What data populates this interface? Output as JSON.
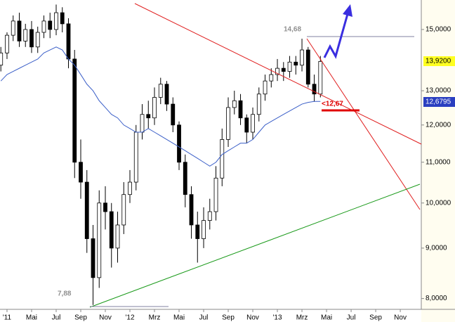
{
  "chart_data": {
    "type": "candlestick",
    "x": [
      1.5,
      2,
      2.5,
      3,
      3.5,
      4,
      4.5,
      5,
      5.5,
      6,
      6.5,
      7,
      7.5,
      8,
      8.5,
      9,
      9.5,
      10,
      10.5,
      11,
      11.5,
      12,
      12.5,
      13,
      13.5,
      14,
      14.5,
      15,
      15.5,
      16,
      16.5,
      17,
      17.5,
      18,
      18.5,
      19,
      19.5,
      20,
      20.5,
      21,
      21.5,
      22,
      22.5,
      23,
      23.5,
      24,
      24.5,
      25,
      25.5,
      26,
      26.5,
      27,
      27.5
    ],
    "open": [
      13.8,
      14.2,
      14.8,
      15.3,
      14.6,
      15.0,
      14.4,
      14.9,
      15.3,
      15.0,
      15.6,
      15.2,
      14.0,
      11.0,
      10.5,
      9.2,
      8.4,
      10.0,
      9.8,
      9.0,
      9.5,
      10.2,
      10.5,
      11.8,
      12.3,
      12.2,
      12.8,
      13.2,
      12.6,
      12.0,
      11.0,
      10.2,
      9.5,
      9.2,
      9.6,
      9.8,
      10.6,
      11.6,
      12.5,
      12.7,
      12.2,
      11.8,
      12.3,
      12.9,
      13.3,
      13.5,
      13.7,
      13.6,
      13.9,
      13.8,
      14.3,
      13.2,
      12.9
    ],
    "high": [
      14.4,
      14.9,
      15.5,
      15.6,
      15.2,
      15.3,
      15.1,
      15.5,
      15.6,
      15.9,
      15.8,
      15.4,
      14.3,
      11.6,
      10.8,
      9.5,
      10.3,
      10.4,
      10.0,
      9.8,
      10.5,
      10.8,
      12.0,
      12.6,
      12.7,
      13.1,
      13.4,
      13.3,
      12.8,
      12.1,
      11.2,
      10.4,
      9.8,
      9.9,
      10.1,
      10.9,
      11.9,
      12.8,
      13.0,
      12.9,
      12.3,
      12.5,
      13.1,
      13.5,
      13.7,
      14.0,
      13.9,
      14.1,
      14.1,
      14.68,
      14.4,
      13.5,
      14.1
    ],
    "low": [
      13.6,
      14.0,
      14.6,
      14.4,
      14.4,
      14.2,
      14.2,
      14.7,
      14.7,
      14.8,
      14.9,
      13.7,
      10.6,
      10.1,
      8.9,
      7.88,
      8.2,
      9.4,
      8.6,
      8.7,
      9.3,
      10.0,
      10.3,
      11.6,
      11.9,
      12.0,
      12.6,
      12.4,
      11.8,
      10.8,
      9.9,
      9.2,
      8.7,
      9.0,
      9.4,
      9.6,
      10.4,
      11.4,
      12.3,
      12.0,
      11.5,
      11.6,
      12.1,
      12.7,
      13.1,
      13.3,
      13.3,
      13.4,
      13.5,
      13.6,
      13.1,
      12.67,
      12.8
    ],
    "close": [
      14.2,
      14.8,
      15.3,
      14.6,
      15.0,
      14.4,
      14.9,
      15.3,
      15.0,
      15.6,
      15.2,
      14.0,
      11.0,
      10.5,
      9.2,
      8.4,
      10.0,
      9.8,
      9.0,
      9.5,
      10.2,
      10.5,
      11.8,
      12.3,
      12.2,
      12.8,
      13.2,
      12.6,
      12.0,
      11.0,
      10.2,
      9.5,
      9.2,
      9.6,
      9.8,
      10.6,
      11.6,
      12.5,
      12.7,
      12.2,
      11.8,
      12.3,
      12.9,
      13.3,
      13.5,
      13.7,
      13.6,
      13.9,
      13.8,
      14.3,
      13.2,
      12.9,
      13.92
    ],
    "moving_average": {
      "color": "#3b5fc8",
      "values": [
        13.3,
        13.5,
        13.6,
        13.7,
        13.8,
        13.9,
        14.0,
        14.2,
        14.3,
        14.4,
        14.3,
        14.0,
        13.8,
        13.5,
        13.2,
        13.0,
        12.7,
        12.5,
        12.3,
        12.2,
        12.0,
        11.9,
        11.8,
        11.8,
        11.9,
        11.8,
        11.7,
        11.6,
        11.5,
        11.4,
        11.3,
        11.2,
        11.1,
        11.0,
        10.9,
        11.0,
        11.2,
        11.3,
        11.4,
        11.5,
        11.5,
        11.6,
        11.8,
        12.0,
        12.1,
        12.2,
        12.3,
        12.4,
        12.5,
        12.6,
        12.65,
        12.68,
        12.68
      ]
    },
    "up_color": "#ffffff",
    "down_color": "#000000",
    "log_scale": true,
    "xlim": [
      1.43,
      35.71
    ],
    "xticks": [
      {
        "value": 2,
        "label": "'11"
      },
      {
        "value": 4,
        "label": "Mai"
      },
      {
        "value": 6,
        "label": "Jul"
      },
      {
        "value": 8,
        "label": "Sep"
      },
      {
        "value": 10,
        "label": "Nov"
      },
      {
        "value": 12,
        "label": "'12"
      },
      {
        "value": 14,
        "label": "Mrz"
      },
      {
        "value": 16,
        "label": "Mai"
      },
      {
        "value": 18,
        "label": "Jul"
      },
      {
        "value": 20,
        "label": "Sep"
      },
      {
        "value": 22,
        "label": "Nov"
      },
      {
        "value": 24,
        "label": "'13"
      },
      {
        "value": 26,
        "label": "Mrz"
      },
      {
        "value": 28,
        "label": "Mai"
      },
      {
        "value": 30,
        "label": "Jul"
      },
      {
        "value": 32,
        "label": "Sep"
      },
      {
        "value": 34,
        "label": "Nov"
      }
    ],
    "ylim": [
      7.8,
      16.07
    ],
    "yticks": [
      {
        "value": 8,
        "label": "8,0000"
      },
      {
        "value": 9,
        "label": "9,0000"
      },
      {
        "value": 10,
        "label": "10,0000"
      },
      {
        "value": 11,
        "label": "11,0000"
      },
      {
        "value": 12,
        "label": "12,0000"
      },
      {
        "value": 13,
        "label": "13,0000"
      },
      {
        "value": 15,
        "label": "15,0000"
      }
    ],
    "annotations": [
      "14,68",
      "<12,67",
      "7,88"
    ],
    "price_labels": [
      "13,9200",
      "12,6795"
    ]
  }
}
